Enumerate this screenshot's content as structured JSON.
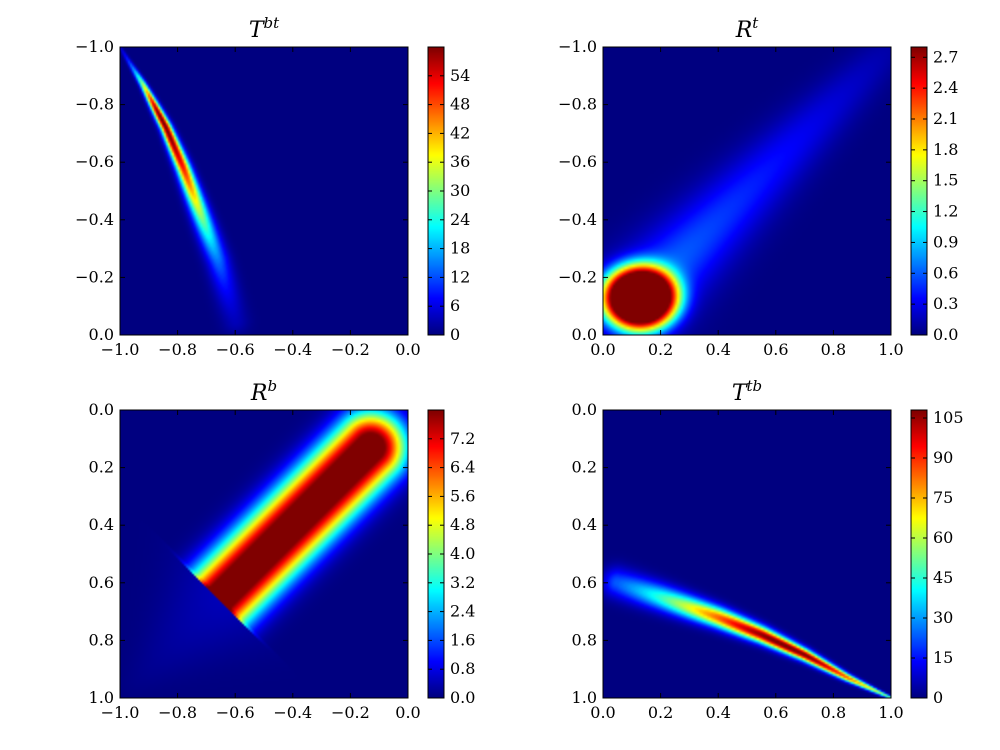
{
  "chart_data": [
    {
      "type": "heatmap",
      "title": "T",
      "title_superscript": "bt",
      "colormap": "jet",
      "xlim": [
        -1.0,
        0.0
      ],
      "ylim": [
        -1.0,
        0.0
      ],
      "y_inverted": true,
      "xticks": [
        "−1.0",
        "−0.8",
        "−0.6",
        "−0.4",
        "−0.2",
        "0.0"
      ],
      "yticks": [
        "−1.0",
        "−0.8",
        "−0.6",
        "−0.4",
        "−0.2",
        "0.0"
      ],
      "colorbar": {
        "min": 0,
        "max": 60,
        "ticks": [
          "0",
          "6",
          "12",
          "18",
          "24",
          "30",
          "36",
          "42",
          "48",
          "54"
        ]
      },
      "field": {
        "kind": "curved-ridge",
        "ridge_curve": [
          [
            -1.0,
            -1.0
          ],
          [
            -0.92,
            -0.87
          ],
          [
            -0.84,
            -0.72
          ],
          [
            -0.78,
            -0.58
          ],
          [
            -0.72,
            -0.42
          ],
          [
            -0.66,
            -0.26
          ],
          [
            -0.6,
            -0.05
          ]
        ],
        "peak_position_on_curve": 0.28,
        "peak_value": 62,
        "ridge_width": [
          0.004,
          0.032
        ],
        "falloff_toward_start": 0.12,
        "falloff_toward_end": 0.3
      }
    },
    {
      "type": "heatmap",
      "title": "R",
      "title_superscript": "t",
      "colormap": "jet",
      "xlim": [
        0.0,
        1.0
      ],
      "ylim": [
        -1.0,
        0.0
      ],
      "y_inverted": true,
      "xticks": [
        "0.0",
        "0.2",
        "0.4",
        "0.6",
        "0.8",
        "1.0"
      ],
      "yticks": [
        "−1.0",
        "−0.8",
        "−0.6",
        "−0.4",
        "−0.2",
        "0.0"
      ],
      "colorbar": {
        "min": 0,
        "max": 2.8,
        "ticks": [
          "0.0",
          "0.3",
          "0.6",
          "0.9",
          "1.2",
          "1.5",
          "1.8",
          "2.1",
          "2.4",
          "2.7"
        ]
      },
      "field": {
        "kind": "blob-with-tail",
        "core_center": [
          0.13,
          -0.13
        ],
        "core_radius": [
          0.13,
          0.11
        ],
        "peak_value": 3.8,
        "tail_from": [
          0.12,
          -0.12
        ],
        "tail_to": [
          1.0,
          -1.0
        ],
        "tail_value": 0.7,
        "tail_width": [
          0.1,
          0.05
        ]
      }
    },
    {
      "type": "heatmap",
      "title": "R",
      "title_superscript": "b",
      "colormap": "jet",
      "xlim": [
        -1.0,
        0.0
      ],
      "ylim": [
        0.0,
        1.0
      ],
      "y_inverted": true,
      "xticks": [
        "−1.0",
        "−0.8",
        "−0.6",
        "−0.4",
        "−0.2",
        "0.0"
      ],
      "yticks": [
        "0.0",
        "0.2",
        "0.4",
        "0.6",
        "0.8",
        "1.0"
      ],
      "colorbar": {
        "min": 0,
        "max": 8,
        "ticks": [
          "0.0",
          "0.8",
          "1.6",
          "2.4",
          "3.2",
          "4.0",
          "4.8",
          "5.6",
          "6.4",
          "7.2"
        ]
      },
      "field": {
        "kind": "capsule-band",
        "band_from": [
          -0.65,
          0.65
        ],
        "band_to": [
          -0.13,
          0.13
        ],
        "peak_value": 9,
        "half_width": 0.115,
        "cut_plane_normal": [
          -0.7,
          0.7
        ],
        "cut_plane_point": [
          -0.65,
          0.65
        ],
        "faint_tail_to": [
          -1.0,
          1.0
        ],
        "faint_tail_value": 0.45
      }
    },
    {
      "type": "heatmap",
      "title": "T",
      "title_superscript": "tb",
      "colormap": "jet",
      "xlim": [
        0.0,
        1.0
      ],
      "ylim": [
        0.0,
        1.0
      ],
      "y_inverted": true,
      "xticks": [
        "0.0",
        "0.2",
        "0.4",
        "0.6",
        "0.8",
        "1.0"
      ],
      "yticks": [
        "0.0",
        "0.2",
        "0.4",
        "0.6",
        "0.8",
        "1.0"
      ],
      "colorbar": {
        "min": 0,
        "max": 108,
        "ticks": [
          "0",
          "15",
          "30",
          "45",
          "60",
          "75",
          "90",
          "105"
        ]
      },
      "field": {
        "kind": "curved-ridge",
        "ridge_curve": [
          [
            0.05,
            0.6
          ],
          [
            0.2,
            0.65
          ],
          [
            0.4,
            0.72
          ],
          [
            0.55,
            0.78
          ],
          [
            0.7,
            0.85
          ],
          [
            0.85,
            0.93
          ],
          [
            1.0,
            1.0
          ]
        ],
        "peak_position_on_curve": 0.62,
        "peak_value": 112,
        "ridge_width": [
          0.035,
          0.004
        ],
        "falloff_toward_start": 0.35,
        "falloff_toward_end": 0.3
      }
    }
  ]
}
